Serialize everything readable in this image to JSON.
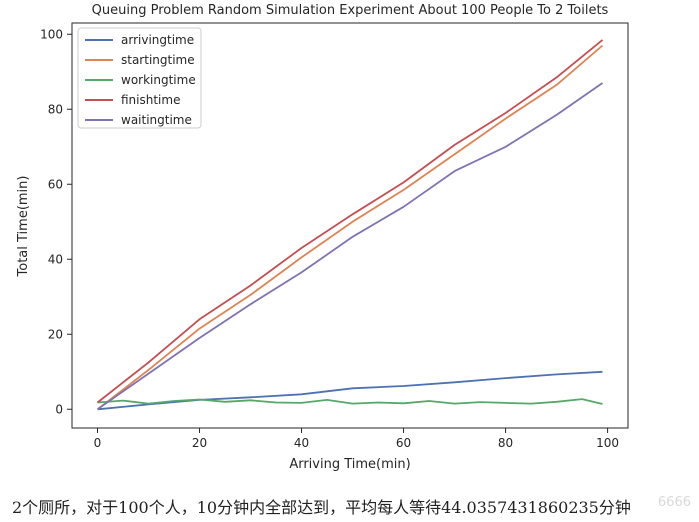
{
  "chart_data": {
    "type": "line",
    "title": "Queuing Problem Random Simulation Experiment About 100 People To 2 Toilets",
    "xlabel": "Arriving Time(min)",
    "ylabel": "Total Time(min)",
    "xlim": [
      -5,
      104
    ],
    "ylim": [
      -5,
      103
    ],
    "xticks": [
      0,
      20,
      40,
      60,
      80,
      100
    ],
    "yticks": [
      0,
      20,
      40,
      60,
      80,
      100
    ],
    "legend_position": "top-left",
    "grid": false,
    "series": [
      {
        "name": "arrivingtime",
        "color": "#4c72b0",
        "x": [
          0,
          10,
          20,
          30,
          40,
          50,
          60,
          70,
          80,
          90,
          99
        ],
        "y": [
          0,
          1.3,
          2.5,
          3.2,
          4.0,
          5.6,
          6.2,
          7.2,
          8.3,
          9.3,
          10.0
        ]
      },
      {
        "name": "startingtime",
        "color": "#dd8452",
        "x": [
          0,
          10,
          20,
          30,
          40,
          50,
          60,
          70,
          80,
          90,
          99
        ],
        "y": [
          0,
          10.5,
          21.5,
          30.5,
          40.5,
          50,
          58.5,
          68,
          77.5,
          86.5,
          97
        ]
      },
      {
        "name": "workingtime",
        "color": "#55a868",
        "x": [
          0,
          5,
          10,
          15,
          20,
          25,
          30,
          35,
          40,
          45,
          50,
          55,
          60,
          65,
          70,
          75,
          80,
          85,
          90,
          95,
          99
        ],
        "y": [
          1.8,
          2.3,
          1.5,
          2.2,
          2.6,
          2.0,
          2.4,
          1.8,
          1.7,
          2.5,
          1.5,
          1.8,
          1.6,
          2.2,
          1.5,
          1.9,
          1.7,
          1.5,
          2.0,
          2.7,
          1.4
        ]
      },
      {
        "name": "finishtime",
        "color": "#c44e52",
        "x": [
          0,
          10,
          20,
          30,
          40,
          50,
          60,
          70,
          80,
          90,
          99
        ],
        "y": [
          1.8,
          12.5,
          24,
          33,
          43,
          52,
          60.5,
          70.5,
          79,
          88.5,
          98.5
        ]
      },
      {
        "name": "waitingtime",
        "color": "#8172b3",
        "x": [
          0,
          10,
          20,
          30,
          40,
          50,
          60,
          70,
          80,
          90,
          99
        ],
        "y": [
          0,
          9.5,
          19,
          28,
          36.5,
          46,
          54,
          63.5,
          70,
          78.5,
          87
        ]
      }
    ]
  },
  "caption": "2个厕所，对于100个人，10分钟内全部达到，平均每人等待44.0357431860235分钟",
  "watermark": "6666"
}
